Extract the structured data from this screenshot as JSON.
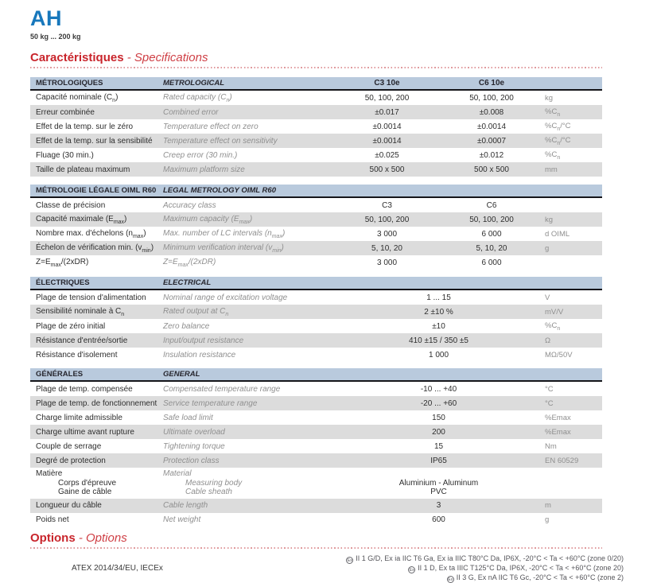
{
  "page": {
    "title": "AH",
    "subtitle": "50 kg ... 200 kg"
  },
  "sections": {
    "specs": {
      "fr": "Caractéristiques",
      "en": " - Specifications"
    },
    "options": {
      "fr": "Options",
      "en": " - Options"
    }
  },
  "colors": {
    "title_blue": "#1878bc",
    "heading_red": "#c9252c",
    "table_header_bg": "#b9cadd",
    "row_gray": "#dcdcdc",
    "muted_text": "#8f8f8f"
  },
  "tables": [
    {
      "header": {
        "fr": "MÉTROLOGIQUES",
        "en": "METROLOGICAL",
        "col3": "C3 10e",
        "col4": "C6 10e"
      },
      "rows": [
        {
          "type": "split",
          "fr": "Capacité nominale (C<sub>n</sub>)",
          "en": "Rated capacity (C<sub>n</sub>)",
          "c3": "50, 100, 200",
          "c6": "50, 100, 200",
          "unit": "kg"
        },
        {
          "type": "split",
          "fr": "Erreur combinée",
          "en": "Combined error",
          "c3": "±0.017",
          "c6": "±0.008",
          "unit": "%C<sub>n</sub>"
        },
        {
          "type": "split",
          "fr": "Effet de la temp. sur le zéro",
          "en": "Temperature effect on zero",
          "c3": "±0.0014",
          "c6": "±0.0014",
          "unit": "%C<sub>n</sub>/°C"
        },
        {
          "type": "split",
          "fr": "Effet de la temp. sur la sensibilité",
          "en": "Temperature effect on sensitivity",
          "c3": "±0.0014",
          "c6": "±0.0007",
          "unit": "%C<sub>n</sub>/°C"
        },
        {
          "type": "split",
          "fr": "Fluage (30 min.)",
          "en": "Creep error (30 min.)",
          "c3": "±0.025",
          "c6": "±0.012",
          "unit": "%C<sub>n</sub>"
        },
        {
          "type": "split",
          "fr": "Taille de plateau maximum",
          "en": "Maximum platform size",
          "c3": "500 x 500",
          "c6": "500 x 500",
          "unit": "mm"
        }
      ]
    },
    {
      "header": {
        "fr": "MÉTROLOGIE LÉGALE OIML R60",
        "en": "LEGAL METROLOGY OIML R60",
        "col3": "",
        "col4": ""
      },
      "rows": [
        {
          "type": "split",
          "fr": "Classe de précision",
          "en": "Accuracy class",
          "c3": "C3",
          "c6": "C6",
          "unit": ""
        },
        {
          "type": "split",
          "fr": "Capacité maximale (E<sub>max</sub>)",
          "en": "Maximum capacity (E<sub>max</sub>)",
          "c3": "50, 100, 200",
          "c6": "50, 100, 200",
          "unit": "kg"
        },
        {
          "type": "split",
          "fr": "Nombre max. d'échelons (n<sub>max</sub>)",
          "en": "Max. number of LC intervals (n<sub>max</sub>)",
          "c3": "3 000",
          "c6": "6 000",
          "unit": "d OIML"
        },
        {
          "type": "split",
          "fr": "Échelon de vérification min. (v<sub>min</sub>)",
          "en": "Minimum verification interval (v<sub>min</sub>)",
          "c3": "5, 10, 20",
          "c6": "5, 10, 20",
          "unit": "g"
        },
        {
          "type": "split",
          "fr": "Z=E<sub>max</sub>/(2xDR)",
          "en": "Z=E<sub>max</sub>/(2xDR)",
          "c3": "3 000",
          "c6": "6 000",
          "unit": ""
        }
      ]
    },
    {
      "header": {
        "fr": "ÉLECTRIQUES",
        "en": "ELECTRICAL",
        "col3": "",
        "col4": ""
      },
      "rows": [
        {
          "type": "span",
          "fr": "Plage de tension d'alimentation",
          "en": "Nominal range of excitation voltage",
          "value": "1 ... 15",
          "unit": "V"
        },
        {
          "type": "span",
          "fr": "Sensibilité nominale à C<sub>n</sub>",
          "en": "Rated output at C<sub>n</sub>",
          "value": "2 ±10 %",
          "unit": "mV/V"
        },
        {
          "type": "span",
          "fr": "Plage de zéro initial",
          "en": "Zero balance",
          "value": "±10",
          "unit": "%C<sub>n</sub>"
        },
        {
          "type": "span",
          "fr": "Résistance d'entrée/sortie",
          "en": "Input/output resistance",
          "value": "410 ±15 / 350 ±5",
          "unit": "Ω"
        },
        {
          "type": "span",
          "fr": "Résistance d'isolement",
          "en": "Insulation resistance",
          "value": "1 000",
          "unit": "MΩ/50V"
        }
      ]
    },
    {
      "header": {
        "fr": "GÉNÉRALES",
        "en": "GENERAL",
        "col3": "",
        "col4": ""
      },
      "rows": [
        {
          "type": "span",
          "fr": "Plage de temp. compensée",
          "en": "Compensated temperature range",
          "value": "-10 ... +40",
          "unit": "°C"
        },
        {
          "type": "span",
          "fr": "Plage de temp. de fonctionnement",
          "en": "Service temperature range",
          "value": "-20 ... +60",
          "unit": "°C"
        },
        {
          "type": "span",
          "fr": "Charge limite admissible",
          "en": "Safe load limit",
          "value": "150",
          "unit": "%Emax"
        },
        {
          "type": "span",
          "fr": "Charge ultime avant rupture",
          "en": "Ultimate overload",
          "value": "200",
          "unit": "%Emax"
        },
        {
          "type": "span",
          "fr": "Couple de serrage",
          "en": "Tightening torque",
          "value": "15",
          "unit": "Nm"
        },
        {
          "type": "span",
          "fr": "Degré de protection",
          "en": "Protection class",
          "value": "IP65",
          "unit": "EN 60529"
        },
        {
          "type": "group",
          "fr": "Matière",
          "en": "Material",
          "items": [
            {
              "fr": "Corps d'épreuve",
              "en": "Measuring body",
              "value": "Aluminium - Aluminum"
            },
            {
              "fr": "Gaine de câble",
              "en": "Cable sheath",
              "value": "PVC"
            }
          ],
          "unit": ""
        },
        {
          "type": "span",
          "fr": "Longueur du câble",
          "en": "Cable length",
          "value": "3",
          "unit": "m"
        },
        {
          "type": "span",
          "fr": "Poids net",
          "en": "Net weight",
          "value": "600",
          "unit": "g"
        }
      ]
    }
  ],
  "footer": {
    "left": "ATEX 2014/34/EU, IECEx",
    "symbol": "Ex",
    "lines": [
      "II 1 G/D, Ex ia IIC T6 Ga, Ex ia IIIC T80°C Da, IP6X, -20°C < Ta < +60°C (zone 0/20)",
      "II 1 D, Ex ta IIIC T125°C Da, IP6X, -20°C < Ta < +60°C (zone 20)",
      "II 3 G, Ex nA IIC T6 Gc, -20°C < Ta < +60°C (zone 2)"
    ]
  }
}
